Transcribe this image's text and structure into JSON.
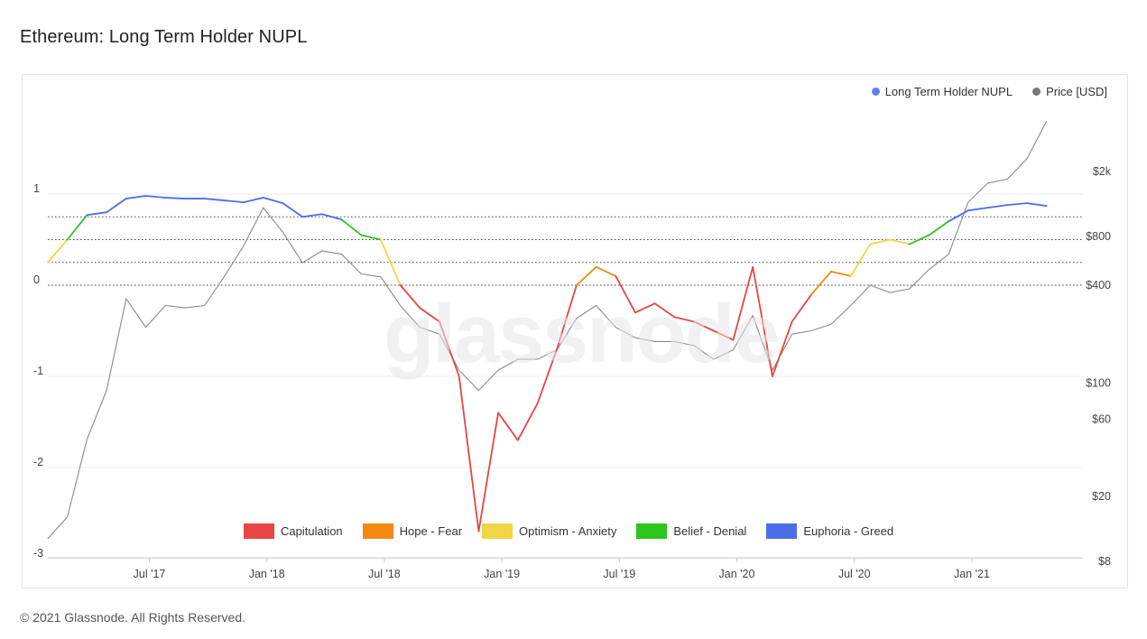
{
  "page": {
    "title": "Ethereum: Long Term Holder NUPL",
    "footer": "© 2021 Glassnode. All Rights Reserved.",
    "watermark": "glassnode"
  },
  "colors": {
    "capitulation": "#e84545",
    "hope_fear": "#f5890f",
    "optimism_anxiety": "#f2d544",
    "belief_denial": "#2ec41e",
    "euphoria_greed": "#4a6ee8",
    "price": "#8a8a8a",
    "nupl_marker": "#5b7ff0"
  },
  "chart_data": {
    "type": "line",
    "title": "Ethereum: Long Term Holder NUPL",
    "x_ticks": [
      "Jul '17",
      "Jan '18",
      "Jul '18",
      "Jan '19",
      "Jul '19",
      "Jan '20",
      "Jul '20",
      "Jan '21"
    ],
    "y_left": {
      "ticks": [
        "1",
        "0",
        "-1",
        "-2",
        "-3"
      ],
      "range": [
        -3,
        1
      ]
    },
    "y_right": {
      "ticks": [
        "$2k",
        "$800",
        "$400",
        "$100",
        "$60",
        "$20",
        "$8"
      ],
      "scale": "log"
    },
    "thresholds": [
      0.75,
      0.5,
      0.25,
      0
    ],
    "legend_top": [
      {
        "label": "Long Term Holder NUPL",
        "color": "#5b7ff0"
      },
      {
        "label": "Price [USD]",
        "color": "#777777"
      }
    ],
    "legend_zones": [
      {
        "label": "Capitulation",
        "color": "#e84545"
      },
      {
        "label": "Hope - Fear",
        "color": "#f5890f"
      },
      {
        "label": "Optimism - Anxiety",
        "color": "#f2d544"
      },
      {
        "label": "Belief - Denial",
        "color": "#2ec41e"
      },
      {
        "label": "Euphoria - Greed",
        "color": "#4a6ee8"
      }
    ],
    "series": [
      {
        "name": "Long Term Holder NUPL",
        "x": [
          "2017-02",
          "2017-03",
          "2017-04",
          "2017-05",
          "2017-06",
          "2017-07",
          "2017-08",
          "2017-09",
          "2017-10",
          "2017-11",
          "2017-12",
          "2018-01",
          "2018-02",
          "2018-03",
          "2018-04",
          "2018-05",
          "2018-06",
          "2018-07",
          "2018-08",
          "2018-09",
          "2018-10",
          "2018-11",
          "2018-12",
          "2019-01",
          "2019-02",
          "2019-03",
          "2019-04",
          "2019-05",
          "2019-06",
          "2019-07",
          "2019-08",
          "2019-09",
          "2019-10",
          "2019-11",
          "2019-12",
          "2020-01",
          "2020-02",
          "2020-03",
          "2020-04",
          "2020-05",
          "2020-06",
          "2020-07",
          "2020-08",
          "2020-09",
          "2020-10",
          "2020-11",
          "2020-12",
          "2021-01",
          "2021-02",
          "2021-03",
          "2021-04",
          "2021-05"
        ],
        "values": [
          0.25,
          0.5,
          0.77,
          0.8,
          0.95,
          0.98,
          0.96,
          0.95,
          0.95,
          0.93,
          0.91,
          0.96,
          0.9,
          0.75,
          0.78,
          0.72,
          0.55,
          0.5,
          0.0,
          -0.25,
          -0.4,
          -1.0,
          -2.7,
          -1.4,
          -1.7,
          -1.3,
          -0.7,
          0.0,
          0.2,
          0.1,
          -0.3,
          -0.2,
          -0.35,
          -0.4,
          -0.5,
          -0.6,
          0.2,
          -1.0,
          -0.4,
          -0.1,
          0.15,
          0.1,
          0.45,
          0.5,
          0.45,
          0.55,
          0.7,
          0.82,
          0.85,
          0.88,
          0.9,
          0.87
        ]
      },
      {
        "name": "Price [USD]",
        "x": [
          "2017-02",
          "2017-03",
          "2017-04",
          "2017-05",
          "2017-06",
          "2017-07",
          "2017-08",
          "2017-09",
          "2017-10",
          "2017-11",
          "2017-12",
          "2018-01",
          "2018-02",
          "2018-03",
          "2018-04",
          "2018-05",
          "2018-06",
          "2018-07",
          "2018-08",
          "2018-09",
          "2018-10",
          "2018-11",
          "2018-12",
          "2019-01",
          "2019-02",
          "2019-03",
          "2019-04",
          "2019-05",
          "2019-06",
          "2019-07",
          "2019-08",
          "2019-09",
          "2019-10",
          "2019-11",
          "2019-12",
          "2020-01",
          "2020-02",
          "2020-03",
          "2020-04",
          "2020-05",
          "2020-06",
          "2020-07",
          "2020-08",
          "2020-09",
          "2020-10",
          "2020-11",
          "2020-12",
          "2021-01",
          "2021-02",
          "2021-03",
          "2021-04",
          "2021-05"
        ],
        "values": [
          11,
          15,
          45,
          90,
          330,
          220,
          300,
          290,
          300,
          450,
          700,
          1200,
          850,
          550,
          650,
          620,
          470,
          450,
          300,
          220,
          200,
          120,
          90,
          120,
          140,
          140,
          160,
          250,
          300,
          220,
          190,
          180,
          180,
          170,
          140,
          160,
          260,
          120,
          200,
          210,
          230,
          300,
          400,
          360,
          380,
          500,
          620,
          1300,
          1700,
          1800,
          2400,
          4100
        ]
      }
    ]
  }
}
